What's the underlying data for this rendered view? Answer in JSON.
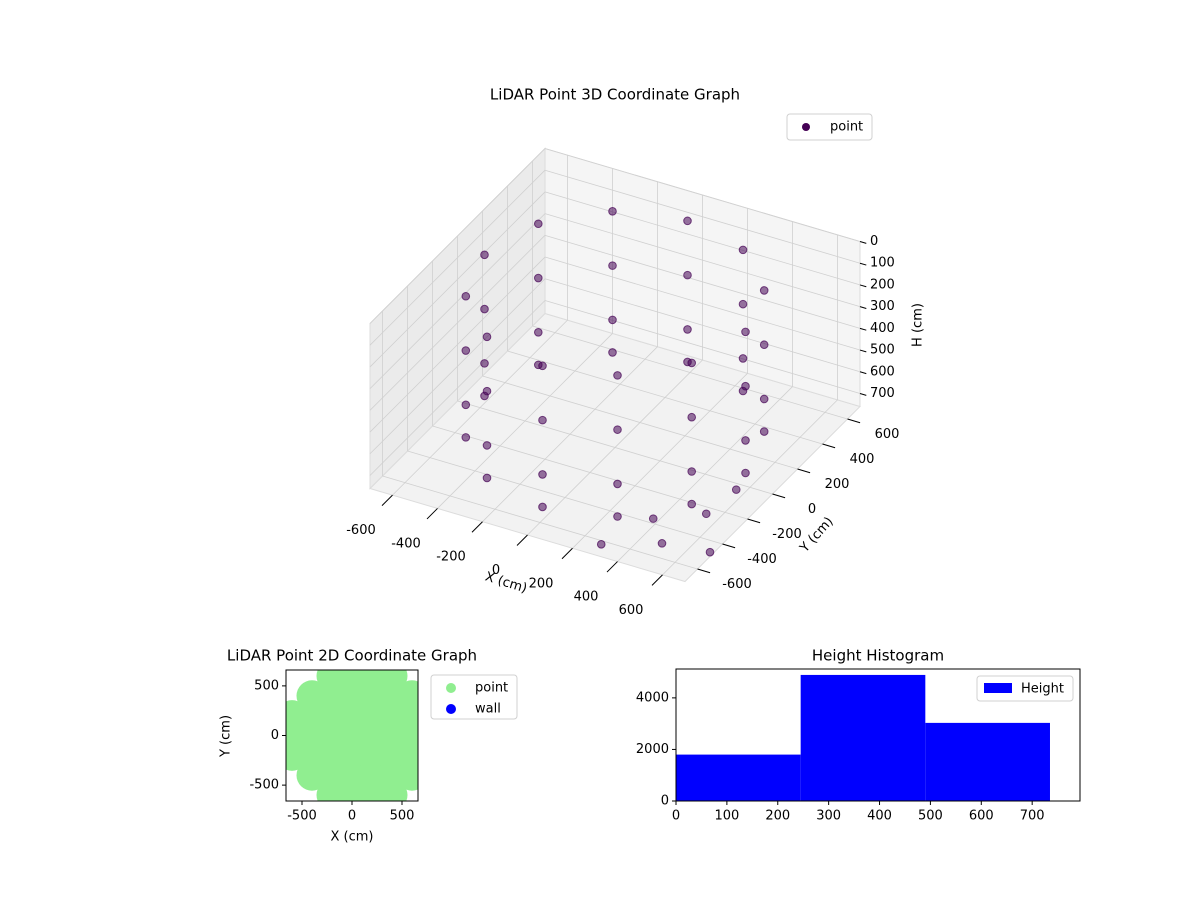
{
  "chart_data": [
    {
      "type": "scatter3d",
      "title": "LiDAR Point 3D Coordinate Graph",
      "xlabel": "X (cm)",
      "ylabel": "Y (cm)",
      "zlabel": "H (cm)",
      "xlim": [
        -700,
        700
      ],
      "ylim": [
        -700,
        700
      ],
      "zlim": [
        760,
        0
      ],
      "xticks": [
        -600,
        -400,
        -200,
        0,
        200,
        400,
        600
      ],
      "yticks": [
        -600,
        -400,
        -200,
        0,
        200,
        400,
        600
      ],
      "zticks": [
        0,
        100,
        200,
        300,
        400,
        500,
        600,
        700
      ],
      "grid": true,
      "legend": "upper right",
      "series": [
        {
          "name": "point",
          "color": "#440154",
          "x": [
            580,
            502,
            290,
            0,
            -290,
            -502,
            -580,
            -502,
            -290,
            0,
            290,
            502,
            580,
            502,
            290,
            0,
            -290,
            -502,
            -580,
            -502,
            -290,
            0,
            290,
            502,
            580,
            502,
            290,
            0,
            -290,
            -502,
            -580,
            -502,
            -290,
            0,
            290,
            502,
            580,
            502,
            290,
            0,
            -290,
            -502,
            -580,
            -502,
            -290,
            0,
            290,
            502,
            420,
            520,
            600,
            650,
            300,
            700
          ],
          "y": [
            0,
            290,
            502,
            580,
            502,
            290,
            0,
            -290,
            -502,
            -580,
            -502,
            -290,
            0,
            290,
            502,
            580,
            502,
            290,
            0,
            -290,
            -502,
            -580,
            -502,
            -290,
            0,
            290,
            502,
            580,
            502,
            290,
            0,
            -290,
            -502,
            -580,
            -502,
            -290,
            0,
            290,
            502,
            580,
            502,
            290,
            0,
            -290,
            -502,
            -580,
            -502,
            -290,
            -450,
            -560,
            -350,
            -200,
            -650,
            -500
          ],
          "z": [
            50,
            50,
            50,
            50,
            50,
            50,
            50,
            50,
            50,
            50,
            50,
            50,
            300,
            300,
            300,
            300,
            300,
            300,
            300,
            300,
            300,
            300,
            300,
            300,
            550,
            550,
            550,
            550,
            550,
            550,
            550,
            550,
            550,
            550,
            550,
            550,
            700,
            700,
            700,
            700,
            700,
            700,
            700,
            700,
            700,
            700,
            700,
            700,
            700,
            720,
            680,
            640,
            740,
            740
          ]
        }
      ]
    },
    {
      "type": "scatter",
      "title": "LiDAR Point 2D Coordinate Graph",
      "xlabel": "X (cm)",
      "ylabel": "Y (cm)",
      "xlim": [
        -660,
        660
      ],
      "ylim": [
        -660,
        660
      ],
      "xticks": [
        -500,
        0,
        500
      ],
      "yticks": [
        -500,
        0,
        500
      ],
      "legend": "outside right",
      "series": [
        {
          "name": "point",
          "color": "#90ee90",
          "x": [
            -600,
            -600,
            -600,
            -400,
            -400,
            -400,
            -400,
            -400,
            -200,
            -200,
            -200,
            -200,
            -200,
            -200,
            -200,
            0,
            0,
            0,
            0,
            0,
            0,
            0,
            200,
            200,
            200,
            200,
            200,
            200,
            200,
            400,
            400,
            400,
            400,
            400,
            400,
            400,
            600,
            600,
            600,
            600,
            600
          ],
          "y": [
            -200,
            0,
            200,
            -400,
            -200,
            0,
            200,
            400,
            -600,
            -400,
            -200,
            0,
            200,
            400,
            600,
            -600,
            -400,
            -200,
            0,
            200,
            400,
            600,
            -600,
            -400,
            -200,
            0,
            200,
            400,
            600,
            -600,
            -400,
            -200,
            0,
            200,
            400,
            600,
            -400,
            -200,
            0,
            200,
            400
          ]
        },
        {
          "name": "wall",
          "color": "#0000ff",
          "x": [],
          "y": []
        }
      ]
    },
    {
      "type": "histogram",
      "title": "Height Histogram",
      "name": "Height",
      "color": "#0000ff",
      "bins": [
        0,
        245,
        490,
        735
      ],
      "counts": [
        1800,
        4890,
        3030
      ],
      "xlim": [
        0,
        794
      ],
      "ylim": [
        0,
        5120
      ],
      "xticks": [
        0,
        100,
        200,
        300,
        400,
        500,
        600,
        700
      ],
      "yticks": [
        0,
        2000,
        4000
      ],
      "legend": "upper right"
    }
  ]
}
